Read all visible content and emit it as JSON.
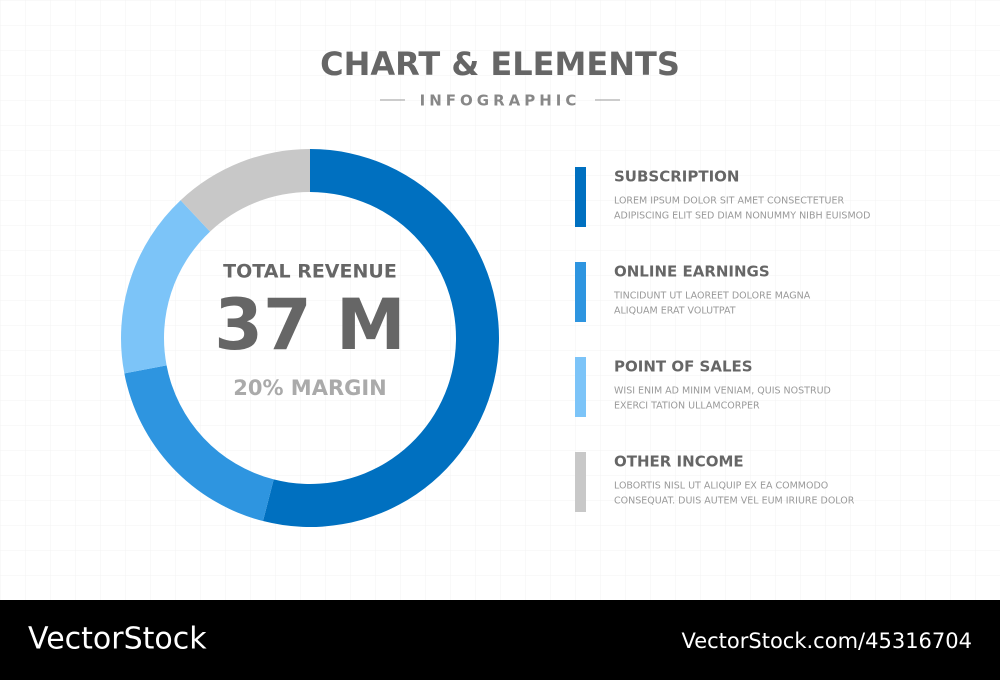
{
  "chart_data": {
    "type": "donut",
    "title": "CHART & ELEMENTS",
    "subtitle": "INFOGRAPHIC",
    "center_label": "TOTAL REVENUE",
    "center_value": "37 M",
    "center_note": "20% MARGIN",
    "categories": [
      "SUBSCRIPTION",
      "ONLINE EARNINGS",
      "POINT OF SALES",
      "OTHER INCOME"
    ],
    "values": [
      54,
      18,
      16,
      12
    ],
    "colors": [
      "#0070c0",
      "#2e95e0",
      "#7cc4f8",
      "#c8c8c8"
    ],
    "descriptions": [
      [
        "LOREM IPSUM DOLOR SIT AMET CONSECTETUER",
        "ADIPISCING ELIT SED DIAM NONUMMY NIBH EUISMOD"
      ],
      [
        "TINCIDUNT UT LAOREET DOLORE MAGNA",
        "ALIQUAM ERAT VOLUTPAT"
      ],
      [
        "WISI ENIM AD MINIM VENIAM, QUIS NOSTRUD",
        "EXERCI TATION ULLAMCORPER"
      ],
      [
        "LOBORTIS NISL UT ALIQUIP EX EA COMMODO",
        "CONSEQUAT. DUIS AUTEM VEL EUM IRIURE DOLOR"
      ]
    ]
  },
  "footer": {
    "brand": "VectorStock",
    "id": "VectorStock.com/45316704"
  }
}
